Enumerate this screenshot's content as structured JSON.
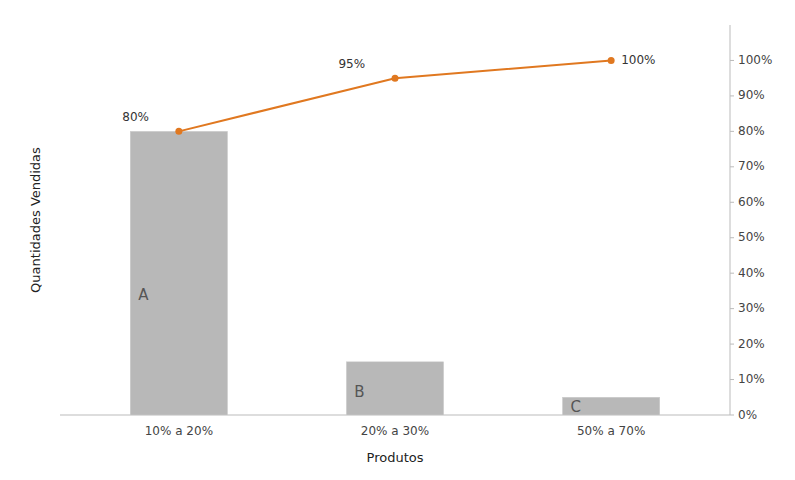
{
  "chart_data": {
    "type": "bar",
    "xlabel": "Produtos",
    "ylabel": "Quantidades Vendidas",
    "categories": [
      "10% a 20%",
      "20% a 30%",
      "50% a 70%"
    ],
    "annotations": [
      "A",
      "B",
      "C"
    ],
    "series": [
      {
        "type": "bar",
        "color": "#b8b8b8",
        "values": [
          80,
          15,
          5
        ]
      },
      {
        "type": "line",
        "axis": "y2",
        "color": "#e07820",
        "marker": "circle",
        "data_labels": true,
        "values": [
          80,
          95,
          100
        ],
        "value_labels": [
          "80%",
          "95%",
          "100%"
        ]
      }
    ],
    "ylim": [
      0,
      110
    ],
    "y2lim": [
      0,
      110
    ],
    "y2ticks": [
      {
        "value": 0,
        "label": "0%"
      },
      {
        "value": 10,
        "label": "10%"
      },
      {
        "value": 20,
        "label": "20%"
      },
      {
        "value": 30,
        "label": "30%"
      },
      {
        "value": 40,
        "label": "40%"
      },
      {
        "value": 50,
        "label": "50%"
      },
      {
        "value": 60,
        "label": "60%"
      },
      {
        "value": 70,
        "label": "70%"
      },
      {
        "value": 80,
        "label": "80%"
      },
      {
        "value": 90,
        "label": "90%"
      },
      {
        "value": 100,
        "label": "100%"
      }
    ]
  }
}
